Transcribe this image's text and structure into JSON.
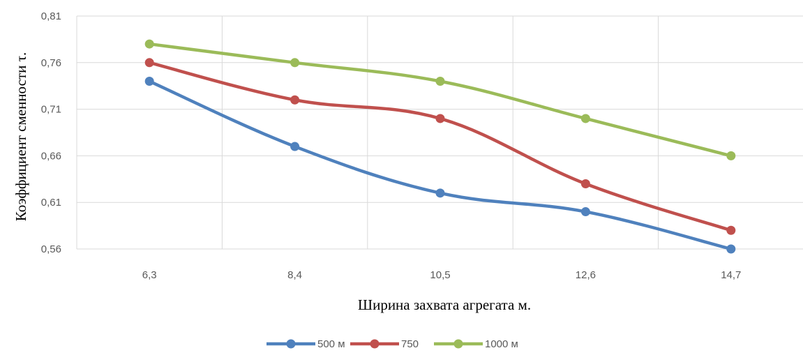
{
  "chart_data": {
    "type": "line",
    "categories": [
      "6,3",
      "8,4",
      "10,5",
      "12,6",
      "14,7"
    ],
    "series": [
      {
        "name": "500 м",
        "color": "#4f81bd",
        "values": [
          0.74,
          0.67,
          0.62,
          0.6,
          0.56
        ]
      },
      {
        "name": "750",
        "color": "#c0504d",
        "values": [
          0.76,
          0.72,
          0.7,
          0.63,
          0.58
        ]
      },
      {
        "name": "1000 м",
        "color": "#9bbb59",
        "values": [
          0.78,
          0.76,
          0.74,
          0.7,
          0.66
        ]
      }
    ],
    "y_ticks": [
      "0,56",
      "0,61",
      "0,66",
      "0,71",
      "0,76",
      "0,81"
    ],
    "ylim": [
      0.56,
      0.81
    ],
    "xlabel": "Ширина захвата агрегата м.",
    "ylabel": "Коэффициент сменности τ.",
    "grid": true,
    "smooth": true,
    "legend_position": "bottom"
  }
}
